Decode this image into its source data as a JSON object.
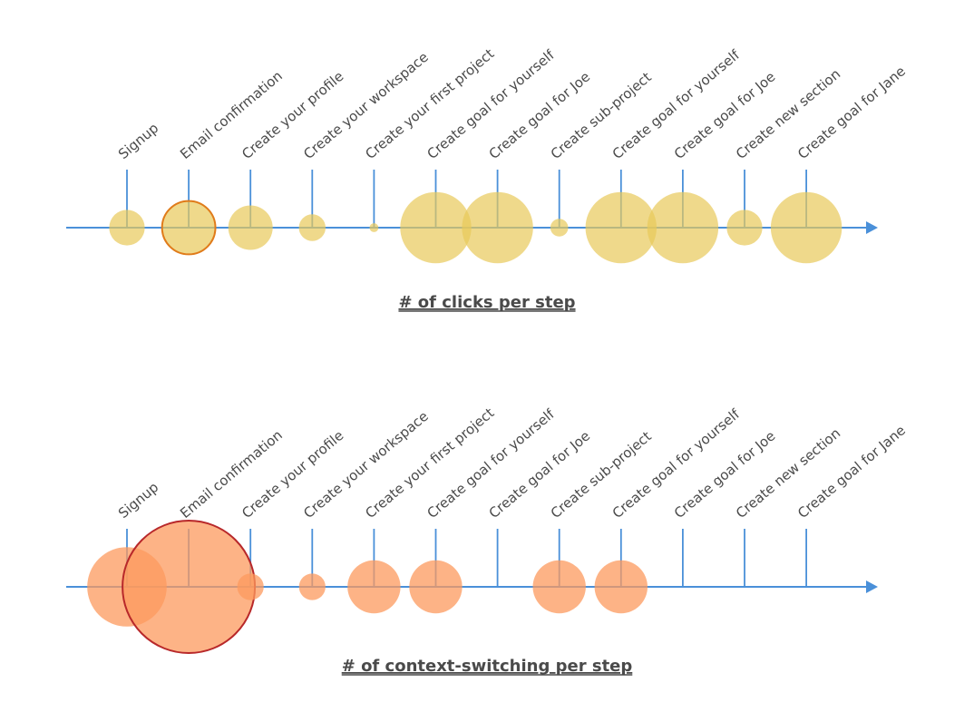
{
  "chart_data": [
    {
      "type": "bubble-timeline",
      "title": "# of clicks per step",
      "categories": [
        "Signup",
        "Email confirmation",
        "Create your profile",
        "Create your workspace",
        "Create your first project",
        "Create goal for yourself",
        "Create goal for Joe",
        "Create sub-project",
        "Create goal for yourself",
        "Create goal for Joe",
        "Create new section",
        "Create goal for Jane"
      ],
      "values": [
        2,
        3,
        2.5,
        1.5,
        0.5,
        4,
        4,
        1,
        4,
        4,
        2,
        4
      ],
      "highlighted": [
        "Email confirmation"
      ],
      "colors": {
        "fill": "#e8c95a",
        "highlight_stroke": "#e07b1a",
        "axis": "#4a90d9",
        "stem": "#4a90d9"
      }
    },
    {
      "type": "bubble-timeline",
      "title": "# of context-switching per step",
      "categories": [
        "Signup",
        "Email confirmation",
        "Create your profile",
        "Create your workspace",
        "Create your first project",
        "Create goal for yourself",
        "Create goal for Joe",
        "Create sub-project",
        "Create goal for yourself",
        "Create goal for Joe",
        "Create new section",
        "Create goal for Jane"
      ],
      "values": [
        3,
        5,
        1,
        1,
        2,
        2,
        0,
        2,
        2,
        0,
        0,
        0
      ],
      "highlighted": [
        "Email confirmation"
      ],
      "colors": {
        "fill": "#fc9a5d",
        "highlight_stroke": "#b8282a",
        "axis": "#4a90d9",
        "stem": "#4a90d9"
      }
    }
  ]
}
